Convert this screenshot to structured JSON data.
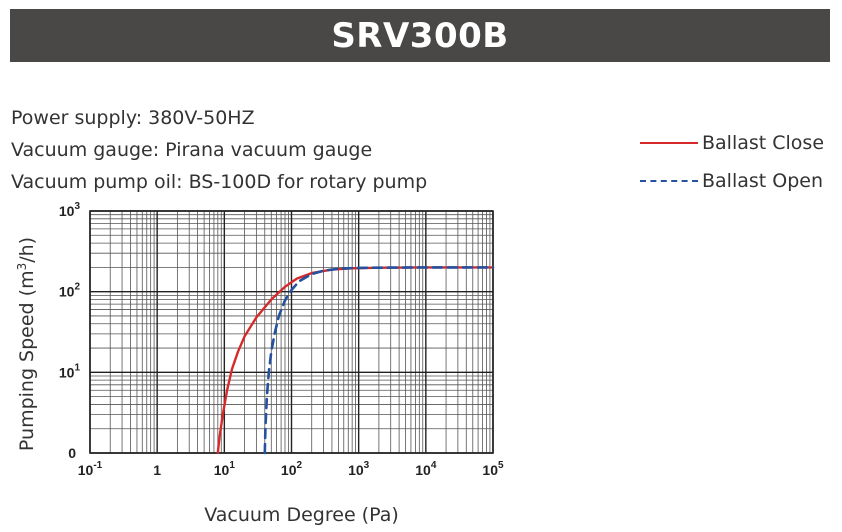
{
  "header": {
    "title": "SRV300B"
  },
  "specs": {
    "power": "Power supply: 380V-50HZ",
    "gauge": "Vacuum gauge: Pirana vacuum gauge",
    "oil": "Vacuum pump oil: BS-100D for rotary pump"
  },
  "colors": {
    "close": "#d62a2a",
    "open": "#2451a0",
    "header_bg": "#4a4846"
  },
  "chart_data": {
    "type": "line",
    "xlabel": "Vacuum Degree (Pa)",
    "ylabel": "Pumping Speed (m3/h)",
    "x_scale": "log",
    "y_scale": "log",
    "xlim": [
      0.1,
      100000
    ],
    "ylim_decades": [
      0,
      3
    ],
    "x_ticks": [
      {
        "base": "10",
        "exp": "-1"
      },
      {
        "base": "1",
        "exp": ""
      },
      {
        "base": "10",
        "exp": "1"
      },
      {
        "base": "10",
        "exp": "2"
      },
      {
        "base": "10",
        "exp": "3"
      },
      {
        "base": "10",
        "exp": "4"
      },
      {
        "base": "10",
        "exp": "5"
      }
    ],
    "y_ticks": [
      {
        "base": "0",
        "exp": ""
      },
      {
        "base": "10",
        "exp": "1"
      },
      {
        "base": "10",
        "exp": "2"
      },
      {
        "base": "10",
        "exp": "3"
      }
    ],
    "grid": true,
    "legend_position": "top-right",
    "series": [
      {
        "name": "Ballast Close",
        "style": "solid",
        "x": [
          8,
          8.5,
          9.5,
          11,
          13,
          16,
          20,
          30,
          50,
          80,
          120,
          200,
          400,
          800,
          2000,
          10000,
          100000
        ],
        "y": [
          1.0,
          1.6,
          3.0,
          6.0,
          11,
          18,
          28,
          48,
          80,
          115,
          145,
          170,
          188,
          195,
          198,
          200,
          200
        ]
      },
      {
        "name": "Ballast Open",
        "style": "dashed",
        "x": [
          40,
          41,
          43,
          46,
          50,
          56,
          65,
          80,
          100,
          130,
          200,
          300,
          500,
          800,
          1500,
          10000,
          100000
        ],
        "y": [
          1.0,
          2.2,
          5.0,
          10,
          18,
          30,
          50,
          78,
          105,
          135,
          165,
          182,
          192,
          196,
          198,
          200,
          200
        ]
      }
    ]
  }
}
